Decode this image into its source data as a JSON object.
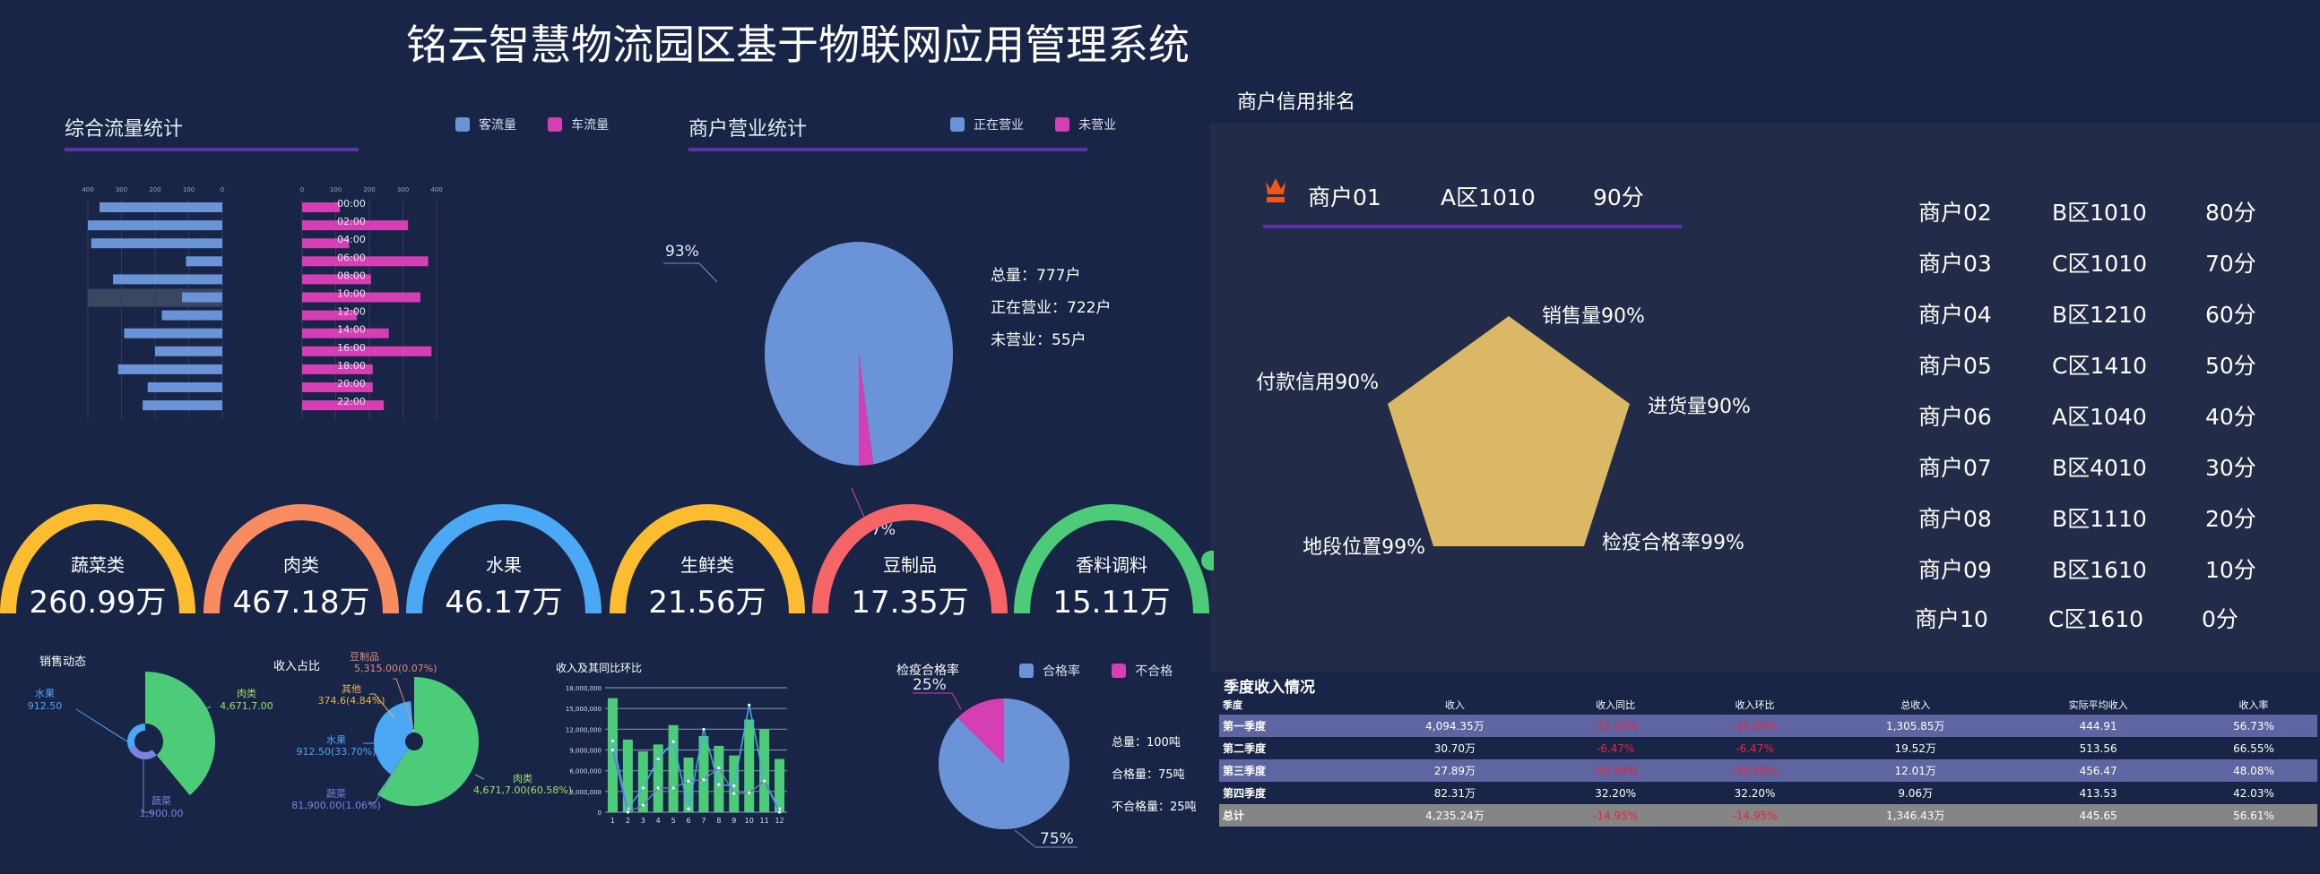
{
  "title": "铭云智慧物流园区基于物联网应用管理系统",
  "flow": {
    "title": "综合流量统计",
    "legend": [
      {
        "label": "客流量",
        "color": "#6a93d8"
      },
      {
        "label": "车流量",
        "color": "#d63fb4"
      }
    ],
    "chart_data": {
      "type": "bar",
      "orientation": "horizontal-butterfly",
      "categories": [
        "00:00",
        "02:00",
        "04:00",
        "06:00",
        "08:00",
        "10:00",
        "12:00",
        "14:00",
        "16:00",
        "18:00",
        "20:00",
        "22:00"
      ],
      "series": [
        {
          "name": "客流量",
          "values": [
            365,
            400,
            390,
            108,
            325,
            120,
            180,
            292,
            200,
            310,
            222,
            237
          ]
        },
        {
          "name": "车流量",
          "values": [
            112,
            315,
            140,
            375,
            205,
            352,
            163,
            258,
            385,
            210,
            210,
            243
          ]
        }
      ],
      "xlim": [
        0,
        400
      ],
      "ticks": [
        "0",
        "100",
        "200",
        "300",
        "400"
      ],
      "highlighted_category": "10:00"
    }
  },
  "merchant_status": {
    "title": "商户营业统计",
    "legend": [
      {
        "label": "正在营业",
        "color": "#6a93d8"
      },
      {
        "label": "未营业",
        "color": "#d63fb4"
      }
    ],
    "chart_data": {
      "type": "pie",
      "labels": [
        "正在营业",
        "未营业"
      ],
      "values": [
        93,
        7
      ],
      "data_labels": [
        "93%",
        "7%"
      ]
    },
    "stats": [
      "总量：777户",
      "正在营业：722户",
      "未营业：55户"
    ]
  },
  "credit": {
    "title": "商户信用排名",
    "top": {
      "name": "商户01",
      "zone": "A区1010",
      "score": "90分",
      "icon": "crown-icon",
      "icon_color": "#f0561a"
    },
    "radar": {
      "type": "radar",
      "axes": [
        "销售量90%",
        "进货量90%",
        "检疫合格率99%",
        "地段位置99%",
        "付款信用90%"
      ],
      "fill": "#dab866"
    },
    "list": [
      {
        "name": "商户02",
        "zone": "B区1010",
        "score": "80分"
      },
      {
        "name": "商户03",
        "zone": "C区1010",
        "score": "70分"
      },
      {
        "name": "商户04",
        "zone": "B区1210",
        "score": "60分"
      },
      {
        "name": "商户05",
        "zone": "C区1410",
        "score": "50分"
      },
      {
        "name": "商户06",
        "zone": "A区1040",
        "score": "40分"
      },
      {
        "name": "商户07",
        "zone": "B区4010",
        "score": "30分"
      },
      {
        "name": "商户08",
        "zone": "B区1110",
        "score": "20分"
      },
      {
        "name": "商户09",
        "zone": "B区1610",
        "score": "10分"
      },
      {
        "name": "商户10",
        "zone": "C区1610",
        "score": "0分"
      }
    ]
  },
  "gauges": [
    {
      "label": "蔬菜类",
      "value": "260.99万",
      "color": "#fbbd2f"
    },
    {
      "label": "肉类",
      "value": "467.18万",
      "color": "#f98b61"
    },
    {
      "label": "水果",
      "value": "46.17万",
      "color": "#4ba8f4"
    },
    {
      "label": "生鲜类",
      "value": "21.56万",
      "color": "#fbbd2f"
    },
    {
      "label": "豆制品",
      "value": "17.35万",
      "color": "#f56466"
    },
    {
      "label": "香料调料",
      "value": "15.11万",
      "color": "#4ccc78"
    }
  ],
  "sales": {
    "title": "销售动态",
    "labels": [
      {
        "name": "水果",
        "value": "912.50",
        "color": "#4ba8f4"
      },
      {
        "name": "肉类",
        "value": "4,671,7.00",
        "color": "#9fe06a"
      },
      {
        "name": "蔬菜",
        "value": "1,900.00",
        "color": "#7b83e0"
      }
    ]
  },
  "income_share": {
    "title": "收入占比",
    "labels": [
      {
        "name": "豆制品",
        "value": "5,315.00(0.07%)",
        "color": "#e08d7a"
      },
      {
        "name": "其他",
        "value": "374.6(4.84%)",
        "color": "#e2b65a"
      },
      {
        "name": "水果",
        "value": "912.50(33.70%)",
        "color": "#4ba8f4"
      },
      {
        "name": "蔬菜",
        "value": "81,900.00(1.06%)",
        "color": "#7b83e0"
      },
      {
        "name": "肉类",
        "value": "4,671,7.00(60.58%)",
        "color": "#9fe06a"
      }
    ]
  },
  "income_trend": {
    "title": "收入及其同比环比",
    "chart_data": {
      "type": "bar+line",
      "categories": [
        "1",
        "2",
        "3",
        "4",
        "5",
        "6",
        "7",
        "8",
        "9",
        "10",
        "11",
        "12"
      ],
      "ylim": [
        0,
        18000000
      ],
      "ticks": [
        "0",
        "3,000,000",
        "6,000,000",
        "9,000,000",
        "12,000,000",
        "15,000,000",
        "18,000,000"
      ],
      "bars": [
        16500000,
        10500000,
        8800000,
        9800000,
        12600000,
        7900000,
        11000000,
        9600000,
        8200000,
        13400000,
        12000000,
        7700000
      ],
      "lines": [
        [
          10300000,
          500000,
          3500000,
          7700000,
          10200000,
          500000,
          12000000,
          4000000,
          3800000,
          15500000,
          4500000,
          500000
        ],
        [
          9000000,
          0,
          1000000,
          3500000,
          3500000,
          4500000,
          4700000,
          6400000,
          2700000,
          2800000,
          4500000,
          0
        ]
      ]
    }
  },
  "quarantine": {
    "title": "检疫合格率",
    "legend": [
      {
        "label": "合格率",
        "color": "#6a93d8"
      },
      {
        "label": "不合格",
        "color": "#d63fb4"
      }
    ],
    "chart_data": {
      "type": "pie",
      "labels": [
        "合格率",
        "不合格"
      ],
      "values": [
        75,
        25
      ],
      "data_labels": [
        "75%",
        "25%"
      ]
    },
    "stats": [
      "总量：100吨",
      "合格量：75吨",
      "不合格量：25吨"
    ]
  },
  "quarterly": {
    "title": "季度收入情况",
    "headers": [
      "季度",
      "收入",
      "收入同比",
      "收入环比",
      "总收入",
      "实际平均收入",
      "收入率"
    ],
    "rows": [
      [
        "第一季度",
        "4,094.35万",
        "-15.20%",
        "-15.20%",
        "1,305.85万",
        "444.91",
        "56.73%"
      ],
      [
        "第二季度",
        "30.70万",
        "-6.47%",
        "-6.47%",
        "19.52万",
        "513.56",
        "66.55%"
      ],
      [
        "第三季度",
        "27.89万",
        "-50.58%",
        "-50.58%",
        "12.01万",
        "456.47",
        "48.08%"
      ],
      [
        "第四季度",
        "82.31万",
        "32.20%",
        "32.20%",
        "9.06万",
        "413.53",
        "42.03%"
      ],
      [
        "总计",
        "4,235.24万",
        "-14.95%",
        "-14.95%",
        "1,346.43万",
        "445.65",
        "56.61%"
      ]
    ]
  }
}
